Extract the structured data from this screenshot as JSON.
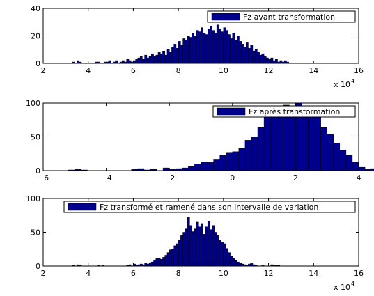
{
  "colors": {
    "bar_fill": "#00008f",
    "bar_stroke": "#000000",
    "axis": "#000000",
    "background": "#ffffff"
  },
  "chart_data": [
    {
      "type": "bar",
      "legend": "Fz avant transformation",
      "legend_placement": "top-right",
      "xlim": [
        20000,
        160000
      ],
      "ylim": [
        0,
        40
      ],
      "xticks": [
        2,
        4,
        6,
        8,
        10,
        12,
        14,
        16
      ],
      "yticks": [
        0,
        20,
        40
      ],
      "x_multiplier_label": "x 10",
      "x_multiplier_exponent": "4",
      "bin_start": 33000,
      "bin_width": 1000,
      "values": [
        1,
        0,
        2,
        1,
        0,
        0,
        0,
        0,
        0,
        0,
        1,
        1,
        0,
        0,
        1,
        1,
        2,
        0,
        1,
        2,
        0,
        1,
        2,
        1,
        3,
        2,
        1,
        2,
        3,
        4,
        5,
        3,
        6,
        4,
        5,
        7,
        5,
        6,
        8,
        7,
        9,
        6,
        10,
        8,
        12,
        14,
        11,
        16,
        13,
        18,
        17,
        20,
        19,
        22,
        20,
        24,
        23,
        26,
        22,
        21,
        25,
        27,
        24,
        22,
        28,
        25,
        23,
        26,
        24,
        21,
        18,
        22,
        17,
        20,
        16,
        14,
        12,
        15,
        11,
        13,
        9,
        10,
        8,
        6,
        7,
        5,
        4,
        3,
        4,
        2,
        3,
        1,
        2,
        1,
        2,
        1
      ]
    },
    {
      "type": "bar",
      "legend": "Fz après transformation",
      "legend_placement": "top-right",
      "xlim": [
        -6,
        4
      ],
      "ylim": [
        0,
        100
      ],
      "xticks": [
        -6,
        -4,
        -2,
        0,
        2,
        4
      ],
      "yticks": [
        0,
        50,
        100
      ],
      "bin_start": -5.2,
      "bin_width": 0.2,
      "values": [
        1,
        2,
        1,
        0,
        0,
        0,
        0,
        0,
        0,
        0,
        2,
        3,
        1,
        2,
        0,
        4,
        2,
        3,
        4,
        6,
        10,
        13,
        12,
        16,
        23,
        27,
        28,
        33,
        45,
        50,
        64,
        82,
        91,
        94,
        97,
        92,
        100,
        95,
        88,
        83,
        64,
        54,
        41,
        30,
        23,
        13,
        5,
        2,
        3,
        1,
        2,
        4,
        2,
        1,
        0,
        1,
        0,
        0,
        2,
        0,
        0
      ]
    },
    {
      "type": "bar",
      "legend": "Fz transformé et ramené dans son intervalle de variation",
      "legend_placement": "top-right",
      "xlim": [
        20000,
        160000
      ],
      "ylim": [
        0,
        100
      ],
      "xticks": [
        2,
        4,
        6,
        8,
        10,
        12,
        14,
        16
      ],
      "yticks": [
        0,
        50,
        100
      ],
      "x_multiplier_label": "x 10",
      "x_multiplier_exponent": "4",
      "bin_start": 33000,
      "bin_width": 1000,
      "values": [
        1,
        0,
        2,
        1,
        0,
        0,
        0,
        0,
        0,
        0,
        0,
        1,
        0,
        1,
        0,
        0,
        0,
        0,
        0,
        0,
        0,
        0,
        0,
        0,
        1,
        2,
        0,
        3,
        1,
        2,
        3,
        2,
        4,
        3,
        5,
        6,
        9,
        11,
        12,
        10,
        13,
        16,
        20,
        24,
        25,
        30,
        33,
        38,
        45,
        50,
        55,
        72,
        60,
        51,
        55,
        65,
        58,
        63,
        47,
        58,
        66,
        54,
        60,
        50,
        45,
        38,
        35,
        33,
        26,
        20,
        15,
        12,
        8,
        6,
        4,
        3,
        2,
        1,
        3,
        4,
        2,
        1,
        0,
        0,
        1,
        0,
        0,
        0,
        2,
        1,
        1,
        1,
        0,
        0,
        0
      ]
    }
  ]
}
